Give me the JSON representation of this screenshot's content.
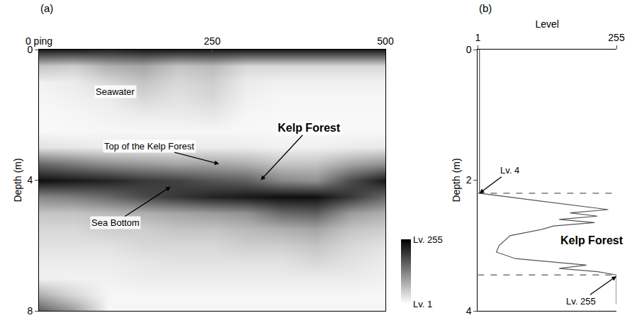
{
  "chart_data": [
    {
      "type": "heatmap",
      "panel": "(a)",
      "ylabel": "Depth (m)",
      "x": [
        0,
        50,
        100,
        150,
        200,
        250,
        300,
        350,
        400,
        450,
        500
      ],
      "y": [
        0,
        0.5,
        1,
        1.5,
        2,
        2.5,
        3,
        3.5,
        4,
        4.5,
        5,
        5.5,
        6,
        6.5,
        7,
        7.5,
        8
      ],
      "z": [
        [
          230,
          230,
          220,
          230,
          230,
          230,
          230,
          230,
          230,
          230,
          230
        ],
        [
          60,
          50,
          80,
          90,
          60,
          70,
          40,
          40,
          40,
          40,
          40
        ],
        [
          15,
          20,
          40,
          60,
          40,
          50,
          20,
          15,
          15,
          15,
          15
        ],
        [
          10,
          15,
          20,
          40,
          30,
          40,
          15,
          10,
          10,
          10,
          10
        ],
        [
          8,
          10,
          15,
          20,
          20,
          25,
          10,
          8,
          8,
          8,
          8
        ],
        [
          8,
          8,
          10,
          10,
          10,
          10,
          8,
          8,
          8,
          8,
          8
        ],
        [
          30,
          25,
          20,
          20,
          20,
          20,
          20,
          15,
          15,
          20,
          25
        ],
        [
          150,
          130,
          110,
          100,
          90,
          90,
          80,
          60,
          60,
          90,
          110
        ],
        [
          240,
          230,
          220,
          200,
          190,
          170,
          160,
          120,
          110,
          180,
          230
        ],
        [
          120,
          130,
          150,
          180,
          200,
          220,
          230,
          240,
          240,
          200,
          150
        ],
        [
          60,
          60,
          70,
          80,
          90,
          100,
          110,
          150,
          160,
          100,
          80
        ],
        [
          40,
          40,
          50,
          50,
          60,
          60,
          70,
          80,
          90,
          60,
          50
        ],
        [
          30,
          30,
          30,
          40,
          40,
          40,
          50,
          50,
          60,
          40,
          30
        ],
        [
          20,
          20,
          20,
          25,
          30,
          30,
          30,
          30,
          40,
          30,
          20
        ],
        [
          15,
          15,
          15,
          20,
          20,
          20,
          20,
          20,
          20,
          20,
          15
        ],
        [
          80,
          40,
          10,
          10,
          10,
          10,
          10,
          10,
          10,
          10,
          10
        ],
        [
          160,
          100,
          10,
          10,
          10,
          10,
          10,
          10,
          10,
          10,
          10
        ]
      ],
      "zlim": [
        1,
        255
      ],
      "zticks": [
        {
          "value": 1,
          "label": "Lv. 1"
        },
        {
          "value": 255,
          "label": "Lv. 255"
        }
      ],
      "xlim": [
        0,
        500
      ],
      "xticks": [
        {
          "value": 0,
          "label": "0 ping"
        },
        250,
        500
      ],
      "ylim": [
        0,
        8
      ],
      "yticks": [
        0,
        4,
        8
      ],
      "annotations": [
        {
          "text": "Seawater",
          "x": 110,
          "y": 1.3
        },
        {
          "text": "Top of the Kelp Forest",
          "x": 260,
          "y": 3.5,
          "text_x": 160,
          "text_y": 2.95
        },
        {
          "text": "Kelp Forest",
          "x": 320,
          "y": 4.0,
          "text_x": 390,
          "text_y": 2.4
        },
        {
          "text": "Sea Bottom",
          "x": 190,
          "y": 4.2,
          "text_x": 110,
          "text_y": 5.3
        }
      ]
    },
    {
      "type": "line",
      "panel": "(b)",
      "xlabel": "Level",
      "ylabel": "Depth (m)",
      "color": "#555555",
      "x": [
        4,
        4,
        240,
        170,
        220,
        150,
        215,
        140,
        120,
        60,
        40,
        35,
        70,
        200,
        150,
        220,
        255,
        255
      ],
      "y": [
        0,
        2.2,
        2.45,
        2.5,
        2.55,
        2.6,
        2.65,
        2.7,
        2.75,
        2.85,
        3.0,
        3.1,
        3.2,
        3.3,
        3.35,
        3.4,
        3.45,
        3.9
      ],
      "xlim": [
        1,
        255
      ],
      "xticks": [
        1,
        255
      ],
      "ylim": [
        0,
        4
      ],
      "yticks": [
        0,
        2,
        4
      ],
      "kelp_top": 2.2,
      "kelp_bottom": 3.45,
      "annotations": [
        {
          "text": "Lv. 4",
          "x": 4,
          "y": 2.2,
          "text_x": 60,
          "text_y": 1.85
        },
        {
          "text": "Kelp Forest",
          "x": 210,
          "y": 2.92
        },
        {
          "text": "Lv. 255",
          "x": 255,
          "y": 3.47,
          "text_x": 190,
          "text_y": 3.85
        }
      ]
    }
  ]
}
